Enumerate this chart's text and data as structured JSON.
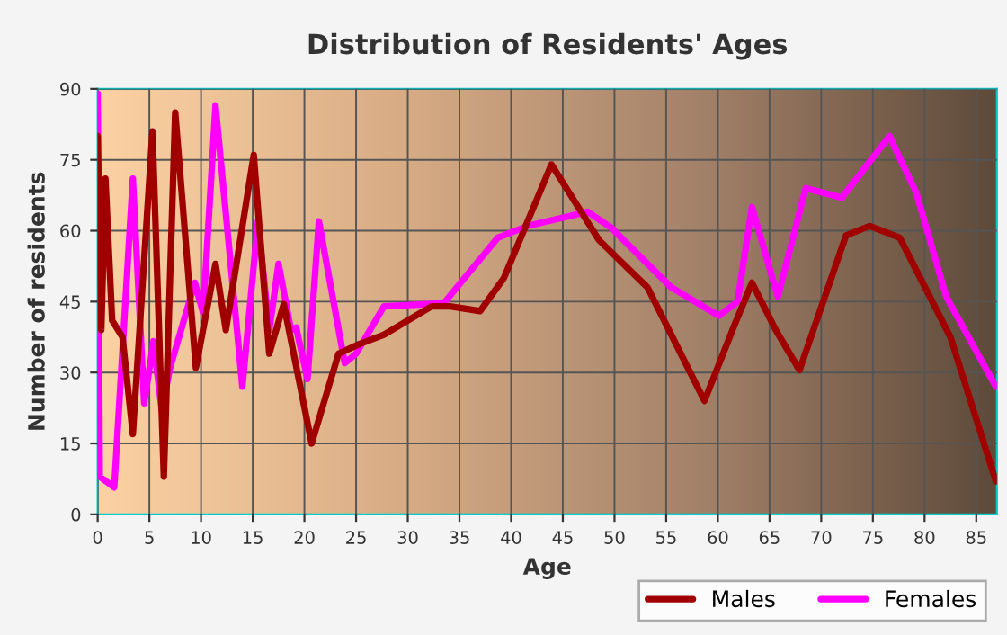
{
  "chart_data": {
    "type": "line",
    "title": "Distribution of Residents' Ages",
    "xlabel": "Age",
    "ylabel": "Number of residents",
    "xlim": [
      0,
      87
    ],
    "ylim": [
      0,
      90
    ],
    "xticks": [
      0,
      5,
      10,
      15,
      20,
      25,
      30,
      35,
      40,
      45,
      50,
      55,
      60,
      65,
      70,
      75,
      80,
      85
    ],
    "yticks": [
      0,
      15,
      30,
      45,
      60,
      75,
      90
    ],
    "grid": true,
    "legend": "bottom right",
    "line_style": "solid",
    "marker": "none",
    "series": [
      {
        "name": "Males",
        "color": "#a00000",
        "x": [
          0,
          0.35,
          0.75,
          1.4,
          2.4,
          3.4,
          5.3,
          6.4,
          7.5,
          9.5,
          11.4,
          12.4,
          15.1,
          16.6,
          18,
          20.7,
          23.3,
          25.3,
          27.7,
          32.3,
          34.1,
          37,
          39.3,
          43.9,
          48.5,
          53.2,
          58.7,
          61.6,
          63.3,
          65.6,
          67.9,
          72.4,
          74.7,
          77.6,
          82.5,
          86.9
        ],
        "values": [
          80,
          39,
          71,
          41,
          37.5,
          17,
          81,
          8,
          85,
          31,
          53,
          39,
          76,
          34,
          44.5,
          15,
          34,
          36,
          38,
          44,
          44,
          43,
          50,
          74,
          58,
          48,
          24,
          40,
          49,
          39,
          30.5,
          59,
          61,
          58.5,
          37.5,
          7
        ]
      },
      {
        "name": "Females",
        "color": "#ff00ff",
        "x": [
          0,
          0.2,
          1.6,
          3.4,
          4.5,
          5.4,
          6.2,
          7.0,
          9.4,
          10.2,
          11.4,
          14.0,
          15.5,
          16.6,
          17.5,
          18.7,
          19.2,
          20.3,
          21.4,
          23.9,
          25.0,
          27.7,
          32.3,
          33.5,
          38.7,
          41.6,
          47.4,
          49.7,
          55.5,
          60.1,
          61.9,
          63.3,
          65.8,
          68.5,
          72.0,
          76.6,
          79.2,
          82.1,
          86.9
        ],
        "values": [
          89,
          8,
          5.7,
          71,
          23.5,
          36.6,
          22,
          31,
          49,
          42.6,
          86.5,
          27,
          62,
          39,
          53,
          39,
          39.5,
          28.6,
          62,
          32,
          34,
          44,
          44.5,
          44.7,
          58.5,
          61,
          64,
          60.6,
          48,
          42,
          45,
          65,
          46,
          69,
          67,
          80,
          68,
          46,
          27
        ]
      }
    ]
  }
}
